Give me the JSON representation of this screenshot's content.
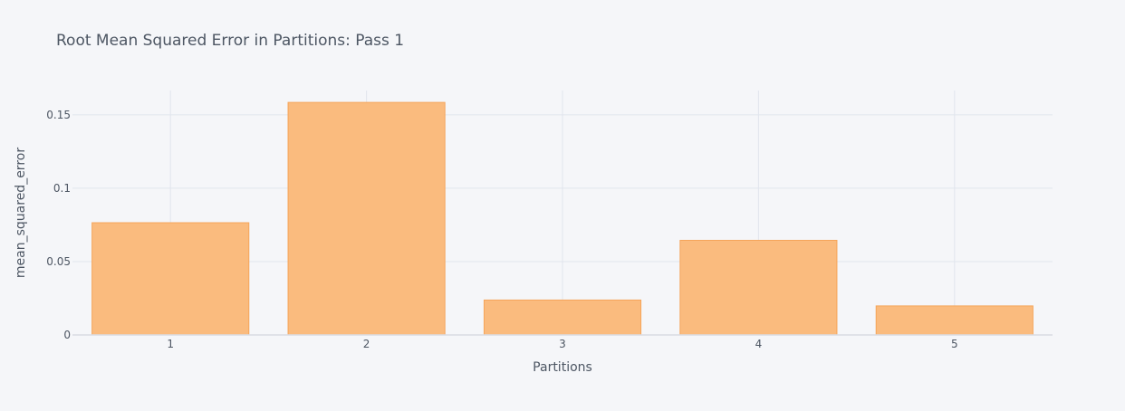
{
  "chart_data": {
    "type": "bar",
    "title": "Root Mean Squared Error in Partitions: Pass 1",
    "xlabel": "Partitions",
    "ylabel": "mean_squared_error",
    "categories": [
      "1",
      "2",
      "3",
      "4",
      "5"
    ],
    "values": [
      0.0765,
      0.1585,
      0.0238,
      0.0645,
      0.0198
    ],
    "ylim": [
      0,
      0.1666
    ],
    "yticks": [
      0,
      0.05,
      0.1,
      0.15
    ],
    "ytick_labels": [
      "0",
      "0.05",
      "0.1",
      "0.15"
    ],
    "grid": true,
    "legend": "none"
  },
  "colors": {
    "background": "#F5F6F9",
    "bar_fill": "#FABB7E",
    "bar_stroke": "#F5A55A",
    "grid": "#E1E5ED",
    "text": "#4D5663",
    "title": "#4D5663"
  }
}
